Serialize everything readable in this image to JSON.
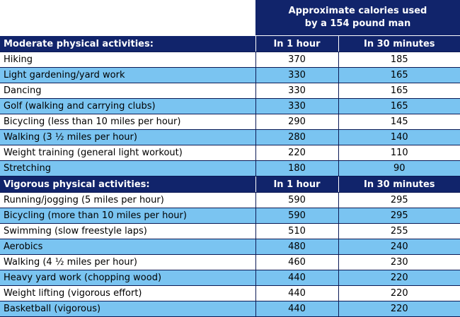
{
  "header": {
    "title": "Approximate calories used\nby a 154 pound man"
  },
  "sections": [
    {
      "title": "Moderate physical activities:",
      "col1": "In 1 hour",
      "col2": "In 30 minutes",
      "rows": [
        {
          "activity": "Hiking",
          "hour": "370",
          "half": "185"
        },
        {
          "activity": "Light gardening/yard work",
          "hour": "330",
          "half": "165"
        },
        {
          "activity": "Dancing",
          "hour": "330",
          "half": "165"
        },
        {
          "activity": "Golf (walking and carrying clubs)",
          "hour": "330",
          "half": "165"
        },
        {
          "activity": "Bicycling (less than 10 miles per hour)",
          "hour": "290",
          "half": "145"
        },
        {
          "activity": "Walking (3 ½ miles per hour)",
          "hour": "280",
          "half": "140"
        },
        {
          "activity": "Weight training (general light workout)",
          "hour": "220",
          "half": "110"
        },
        {
          "activity": "Stretching",
          "hour": "180",
          "half": "90"
        }
      ]
    },
    {
      "title": "Vigorous physical activities:",
      "col1": "In 1 hour",
      "col2": "In 30 minutes",
      "rows": [
        {
          "activity": "Running/jogging (5 miles per hour)",
          "hour": "590",
          "half": "295"
        },
        {
          "activity": "Bicycling (more than 10 miles per hour)",
          "hour": "590",
          "half": "295"
        },
        {
          "activity": "Swimming (slow freestyle laps)",
          "hour": "510",
          "half": "255"
        },
        {
          "activity": "Aerobics",
          "hour": "480",
          "half": "240"
        },
        {
          "activity": "Walking (4 ½ miles per hour)",
          "hour": "460",
          "half": "230"
        },
        {
          "activity": "Heavy yard work (chopping wood)",
          "hour": "440",
          "half": "220"
        },
        {
          "activity": "Weight lifting (vigorous effort)",
          "hour": "440",
          "half": "220"
        },
        {
          "activity": "Basketball (vigorous)",
          "hour": "440",
          "half": "220"
        }
      ]
    }
  ],
  "colors": {
    "header_bg": "#11246b",
    "row_alt": "#7ac4f1",
    "row_plain": "#ffffff"
  }
}
